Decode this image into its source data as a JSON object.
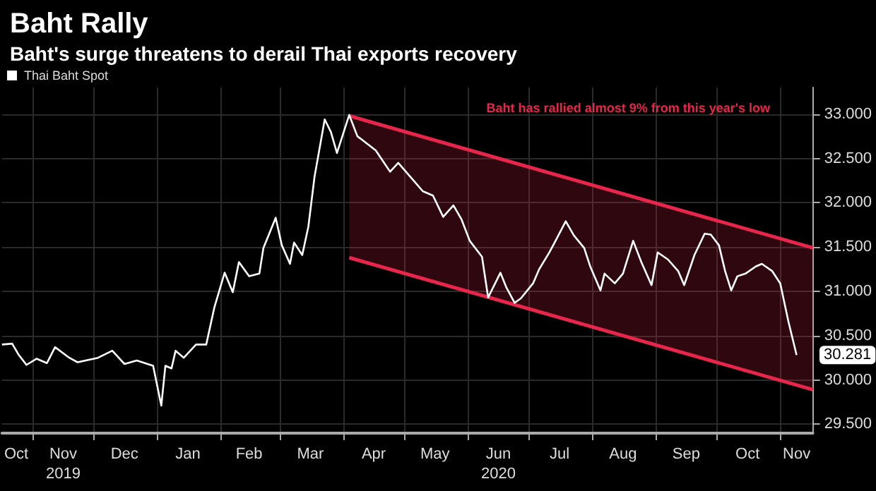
{
  "chart_data": {
    "type": "line",
    "title": "Baht Rally",
    "subtitle": "Baht's surge threatens to derail Thai exports recovery",
    "legend": "top left",
    "grid": true,
    "marker": "none",
    "line_style": "solid",
    "xlim": [
      "2019-10-17",
      "2020-11-17"
    ],
    "xticks": [
      {
        "value": "2019-10-24",
        "label": "Oct"
      },
      {
        "value": "2019-11-01",
        "label": null
      },
      {
        "value": "2019-11-16",
        "label": "Nov\n2019"
      },
      {
        "value": "2019-12-01",
        "label": null
      },
      {
        "value": "2019-12-16",
        "label": "Dec"
      },
      {
        "value": "2020-01-01",
        "label": null
      },
      {
        "value": "2020-01-16",
        "label": "Jan"
      },
      {
        "value": "2020-02-01",
        "label": null
      },
      {
        "value": "2020-02-15",
        "label": "Feb"
      },
      {
        "value": "2020-03-01",
        "label": null
      },
      {
        "value": "2020-03-16",
        "label": "Mar"
      },
      {
        "value": "2020-04-01",
        "label": null
      },
      {
        "value": "2020-04-16",
        "label": "Apr"
      },
      {
        "value": "2020-05-01",
        "label": null
      },
      {
        "value": "2020-05-16",
        "label": "May"
      },
      {
        "value": "2020-06-01",
        "label": null
      },
      {
        "value": "2020-06-16",
        "label": "Jun\n2020"
      },
      {
        "value": "2020-07-01",
        "label": null
      },
      {
        "value": "2020-07-16",
        "label": "Jul"
      },
      {
        "value": "2020-08-01",
        "label": null
      },
      {
        "value": "2020-08-16",
        "label": "Aug"
      },
      {
        "value": "2020-09-01",
        "label": null
      },
      {
        "value": "2020-09-16",
        "label": "Sep"
      },
      {
        "value": "2020-10-01",
        "label": null
      },
      {
        "value": "2020-10-16",
        "label": "Oct"
      },
      {
        "value": "2020-11-01",
        "label": null
      },
      {
        "value": "2020-11-09",
        "label": "Nov"
      }
    ],
    "ylim": [
      29.4,
      33.3
    ],
    "yticks": [
      {
        "value": 29.5,
        "label": "29.500"
      },
      {
        "value": 30,
        "label": "30.000"
      },
      {
        "value": 30.5,
        "label": "30.500"
      },
      {
        "value": 31,
        "label": "31.000"
      },
      {
        "value": 31.5,
        "label": "31.500"
      },
      {
        "value": 32,
        "label": "32.000"
      },
      {
        "value": 32.5,
        "label": "32.500"
      },
      {
        "value": 33,
        "label": "33.000"
      }
    ],
    "annotations": [
      "Baht has rallied almost 9% from this year's low",
      {
        "text": "30.281",
        "x": "2020-11-09",
        "y": 30.281
      }
    ],
    "series": [
      {
        "type": "line",
        "color": "#e8254a",
        "x": [
          "2020-04-04",
          "2020-11-17"
        ],
        "values": [
          32.98,
          31.49
        ],
        "lower": [
          31.38,
          29.89
        ],
        "upper": [
          32.98,
          31.49
        ]
      },
      {
        "color": "#e8254a",
        "x": [
          "2020-04-04",
          "2020-11-17"
        ],
        "values": [
          31.38,
          29.89
        ]
      },
      {
        "name": "Thai Baht Spot",
        "color": "#ffffff",
        "x": [
          "2019-10-17",
          "2019-10-22",
          "2019-10-25",
          "2019-10-29",
          "2019-11-03",
          "2019-11-08",
          "2019-11-12",
          "2019-11-19",
          "2019-11-23",
          "2019-12-03",
          "2019-12-10",
          "2019-12-16",
          "2019-12-22",
          "2019-12-30",
          "2020-01-03",
          "2020-01-05",
          "2020-01-08",
          "2020-01-10",
          "2020-01-14",
          "2020-01-20",
          "2020-01-25",
          "2020-01-29",
          "2020-02-03",
          "2020-02-07",
          "2020-02-10",
          "2020-02-15",
          "2020-02-20",
          "2020-02-22",
          "2020-02-28",
          "2020-03-02",
          "2020-03-06",
          "2020-03-08",
          "2020-03-12",
          "2020-03-15",
          "2020-03-18",
          "2020-03-23",
          "2020-03-26",
          "2020-03-29",
          "2020-04-04",
          "2020-04-08",
          "2020-04-17",
          "2020-04-24",
          "2020-04-28",
          "2020-05-10",
          "2020-05-15",
          "2020-05-20",
          "2020-05-25",
          "2020-05-29",
          "2020-06-02",
          "2020-06-08",
          "2020-06-11",
          "2020-06-17",
          "2020-06-20",
          "2020-06-24",
          "2020-06-27",
          "2020-07-03",
          "2020-07-06",
          "2020-07-11",
          "2020-07-14",
          "2020-07-19",
          "2020-07-23",
          "2020-07-28",
          "2020-07-31",
          "2020-08-05",
          "2020-08-07",
          "2020-08-12",
          "2020-08-16",
          "2020-08-21",
          "2020-08-25",
          "2020-08-30",
          "2020-09-02",
          "2020-09-07",
          "2020-09-12",
          "2020-09-15",
          "2020-09-20",
          "2020-09-25",
          "2020-09-28",
          "2020-10-02",
          "2020-10-05",
          "2020-10-08",
          "2020-10-11",
          "2020-10-15",
          "2020-10-20",
          "2020-10-23",
          "2020-10-28",
          "2020-11-01",
          "2020-11-05",
          "2020-11-09"
        ],
        "values": [
          30.4,
          30.41,
          30.29,
          30.17,
          30.24,
          30.19,
          30.37,
          30.25,
          30.2,
          30.25,
          30.33,
          30.18,
          30.22,
          30.16,
          29.71,
          30.16,
          30.13,
          30.33,
          30.25,
          30.4,
          30.4,
          30.82,
          31.21,
          30.99,
          31.33,
          31.17,
          31.2,
          31.49,
          31.83,
          31.52,
          31.31,
          31.55,
          31.41,
          31.73,
          32.29,
          32.94,
          32.8,
          32.56,
          32.99,
          32.75,
          32.59,
          32.35,
          32.45,
          32.13,
          32.08,
          31.84,
          31.97,
          31.81,
          31.57,
          31.39,
          30.93,
          31.21,
          31.04,
          30.87,
          30.92,
          31.09,
          31.25,
          31.44,
          31.57,
          31.79,
          31.63,
          31.49,
          31.28,
          31.01,
          31.2,
          31.09,
          31.2,
          31.57,
          31.33,
          31.07,
          31.44,
          31.36,
          31.23,
          31.07,
          31.41,
          31.65,
          31.64,
          31.52,
          31.23,
          31.01,
          31.17,
          31.2,
          31.28,
          31.31,
          31.23,
          31.09,
          30.66,
          30.281
        ]
      }
    ]
  }
}
